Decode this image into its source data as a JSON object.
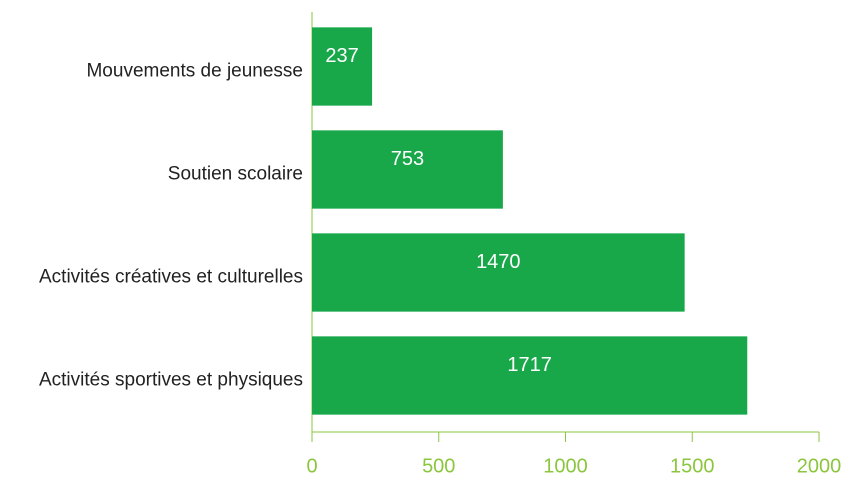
{
  "chart_data": {
    "type": "bar",
    "orientation": "horizontal",
    "categories": [
      "Mouvements de jeunesse",
      "Soutien scolaire",
      "Activités créatives et culturelles",
      "Activités sportives et physiques"
    ],
    "values": [
      237,
      753,
      1470,
      1717
    ],
    "color": "#18a84a",
    "xlim": [
      0,
      2000
    ],
    "xticks": [
      0,
      500,
      1000,
      1500,
      2000
    ],
    "grid": false
  }
}
